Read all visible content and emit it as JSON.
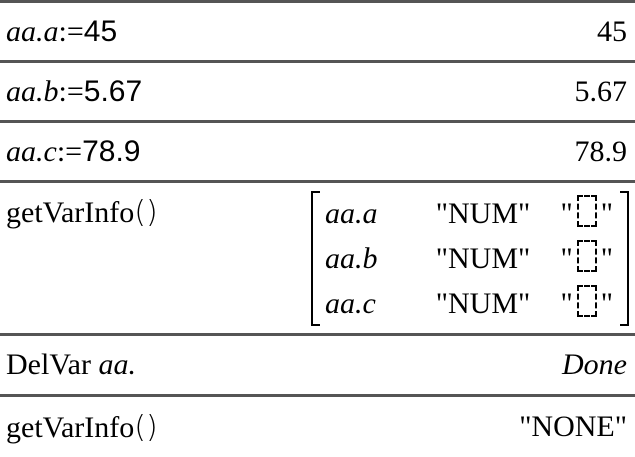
{
  "entries": [
    {
      "input_var": "aa.a",
      "input_op": ":=",
      "input_val": "45",
      "output": "45"
    },
    {
      "input_var": "aa.b",
      "input_op": ":=",
      "input_val": "5.67",
      "output": "5.67"
    },
    {
      "input_var": "aa.c",
      "input_op": ":=",
      "input_val": "78.9",
      "output": "78.9"
    },
    {
      "input": "getVarInfo",
      "parens": "()",
      "output_matrix": [
        {
          "name": "aa.a",
          "type": "\"NUM\"",
          "q_open": "\"",
          "q_close": "\""
        },
        {
          "name": "aa.b",
          "type": "\"NUM\"",
          "q_open": "\"",
          "q_close": "\""
        },
        {
          "name": "aa.c",
          "type": "\"NUM\"",
          "q_open": "\"",
          "q_close": "\""
        }
      ]
    },
    {
      "input_cmd": "DelVar",
      "input_arg": "aa.",
      "output": "Done"
    },
    {
      "input": "getVarInfo",
      "parens": "()",
      "output": "\"NONE\""
    }
  ]
}
